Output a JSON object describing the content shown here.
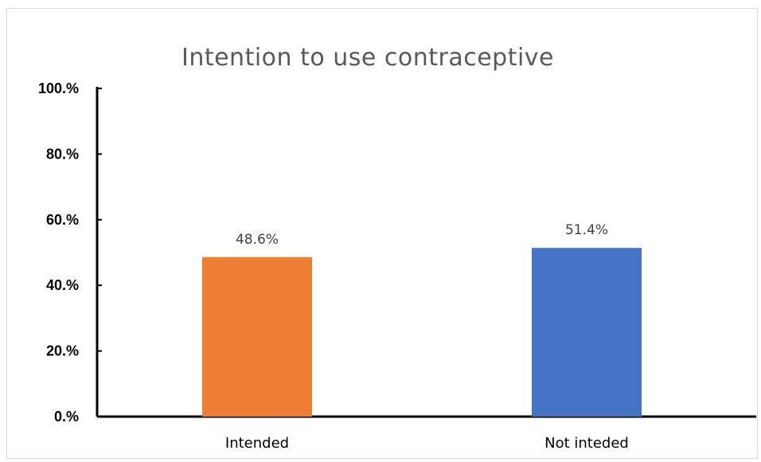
{
  "chart_data": {
    "type": "bar",
    "title": "Intention to use contraceptive",
    "xlabel": "",
    "ylabel": "",
    "categories": [
      "Intended",
      "Not inteded"
    ],
    "values": [
      48.6,
      51.4
    ],
    "data_labels": [
      "48.6%",
      "51.4%"
    ],
    "bar_colors": [
      "#ed7d31",
      "#4472c4"
    ],
    "ylim": [
      0,
      100
    ],
    "yticks": [
      0,
      20,
      40,
      60,
      80,
      100
    ],
    "ytick_labels": [
      "0.%",
      "20.%",
      "40.%",
      "60.%",
      "80.%",
      "100.%"
    ],
    "grid": false,
    "legend": "none"
  }
}
